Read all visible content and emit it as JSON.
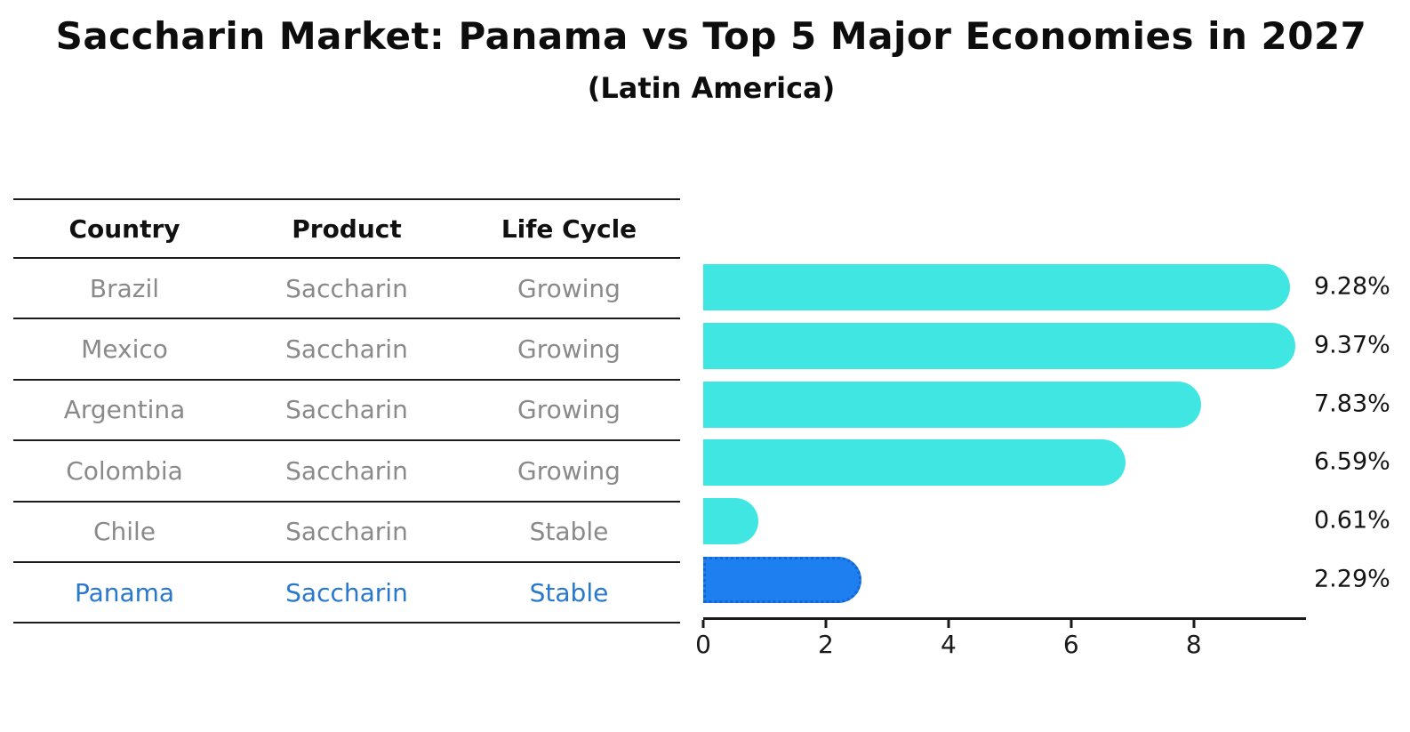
{
  "title": "Saccharin Market: Panama vs Top 5 Major Economies in 2027",
  "subtitle": "(Latin America)",
  "table": {
    "headers": [
      "Country",
      "Product",
      "Life Cycle"
    ],
    "rows": [
      {
        "country": "Brazil",
        "product": "Saccharin",
        "life_cycle": "Growing"
      },
      {
        "country": "Mexico",
        "product": "Saccharin",
        "life_cycle": "Growing"
      },
      {
        "country": "Argentina",
        "product": "Saccharin",
        "life_cycle": "Growing"
      },
      {
        "country": "Colombia",
        "product": "Saccharin",
        "life_cycle": "Growing"
      },
      {
        "country": "Chile",
        "product": "Saccharin",
        "life_cycle": "Stable"
      },
      {
        "country": "Panama",
        "product": "Saccharin",
        "life_cycle": "Stable"
      }
    ]
  },
  "chart_data": {
    "type": "bar",
    "orientation": "horizontal",
    "categories": [
      "Brazil",
      "Mexico",
      "Argentina",
      "Colombia",
      "Chile",
      "Panama"
    ],
    "values": [
      9.28,
      9.37,
      7.83,
      6.59,
      0.61,
      2.29
    ],
    "value_labels": [
      "9.28%",
      "9.37%",
      "7.83%",
      "6.59%",
      "0.61%",
      "2.29%"
    ],
    "title": "Saccharin Market: Panama vs Top 5 Major Economies in 2027 (Latin America)",
    "xlabel": "",
    "ylabel": "",
    "xlim": [
      0,
      9.83
    ],
    "xticks": [
      0,
      2,
      4,
      6,
      8
    ],
    "grid": false,
    "legend": false,
    "highlight_index": 5
  },
  "colors": {
    "bar": "#40e7e2",
    "highlight_bar": "#1e80f0",
    "highlight_border": "#1565d0",
    "highlight_text": "#2878cc",
    "table_text": "#8a8a8a",
    "header_text": "#111111",
    "axis": "#1a1a1a"
  }
}
